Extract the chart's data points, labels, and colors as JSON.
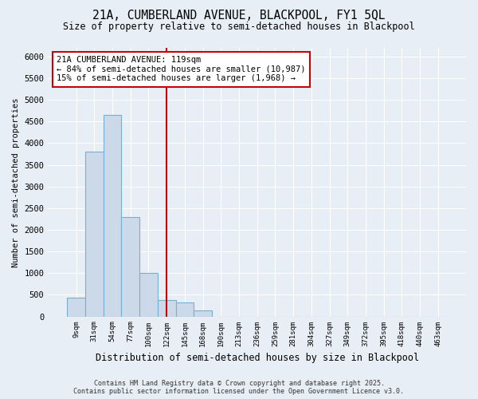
{
  "title_line1": "21A, CUMBERLAND AVENUE, BLACKPOOL, FY1 5QL",
  "title_line2": "Size of property relative to semi-detached houses in Blackpool",
  "xlabel": "Distribution of semi-detached houses by size in Blackpool",
  "ylabel": "Number of semi-detached properties",
  "categories": [
    "9sqm",
    "31sqm",
    "54sqm",
    "77sqm",
    "100sqm",
    "122sqm",
    "145sqm",
    "168sqm",
    "190sqm",
    "213sqm",
    "236sqm",
    "259sqm",
    "281sqm",
    "304sqm",
    "327sqm",
    "349sqm",
    "372sqm",
    "395sqm",
    "418sqm",
    "440sqm",
    "463sqm"
  ],
  "values": [
    430,
    3800,
    4650,
    2300,
    1000,
    370,
    320,
    130,
    0,
    0,
    0,
    0,
    0,
    0,
    0,
    0,
    0,
    0,
    0,
    0,
    0
  ],
  "bar_color": "#ccd9e8",
  "bar_edge_color": "#7aafd4",
  "vline_color": "#cc0000",
  "annotation_text": "21A CUMBERLAND AVENUE: 119sqm\n← 84% of semi-detached houses are smaller (10,987)\n15% of semi-detached houses are larger (1,968) →",
  "annotation_box_color": "#cc0000",
  "ylim": [
    0,
    6200
  ],
  "yticks": [
    0,
    500,
    1000,
    1500,
    2000,
    2500,
    3000,
    3500,
    4000,
    4500,
    5000,
    5500,
    6000
  ],
  "footer_line1": "Contains HM Land Registry data © Crown copyright and database right 2025.",
  "footer_line2": "Contains public sector information licensed under the Open Government Licence v3.0.",
  "background_color": "#e8eef5",
  "grid_color": "#ffffff"
}
